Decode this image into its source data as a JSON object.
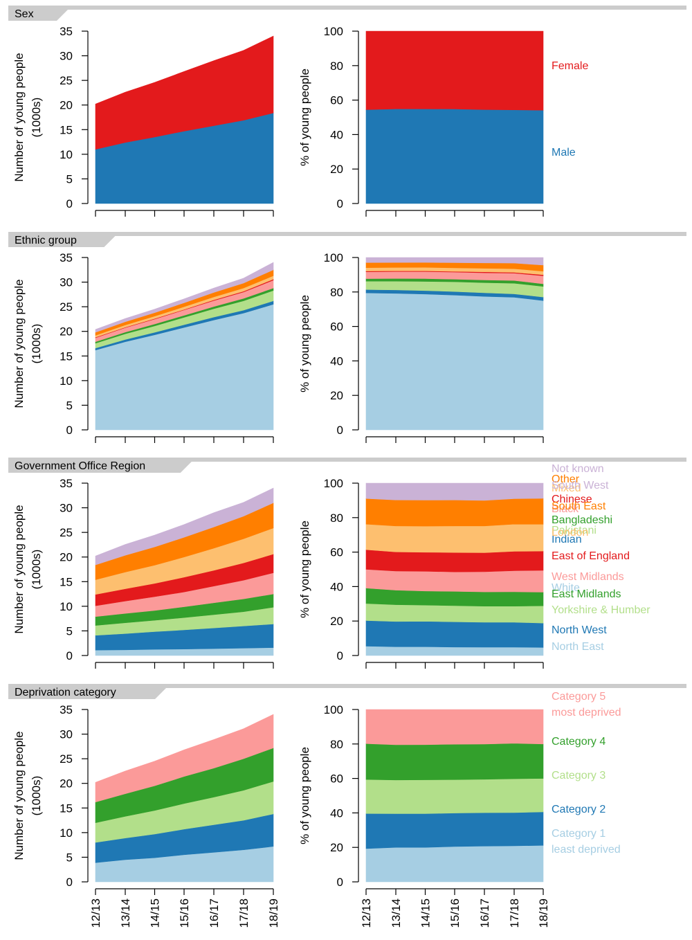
{
  "years": [
    "12/13",
    "13/14",
    "14/15",
    "15/16",
    "16/17",
    "17/18",
    "18/19"
  ],
  "axes": {
    "count_ylabel_line1": "Number of young people",
    "count_ylabel_line2": "(1000s)",
    "percent_ylabel": "% of young people",
    "count_ticks": [
      "0",
      "5",
      "10",
      "15",
      "20",
      "25",
      "30",
      "35"
    ],
    "percent_ticks": [
      "0",
      "20",
      "40",
      "60",
      "80",
      "100"
    ]
  },
  "chart_data": [
    {
      "title": "Sex",
      "type": "area",
      "stacked": true,
      "x": [
        "12/13",
        "13/14",
        "14/15",
        "15/16",
        "16/17",
        "17/18",
        "18/19"
      ],
      "count_ylim": [
        0,
        35
      ],
      "percent_ylim": [
        0,
        100
      ],
      "series": [
        {
          "name": "Male",
          "color": "#1f78b4",
          "values": [
            11.0,
            12.4,
            13.5,
            14.7,
            15.8,
            16.9,
            18.4
          ]
        },
        {
          "name": "Female",
          "color": "#e31a1c",
          "values": [
            9.2,
            10.2,
            11.1,
            12.1,
            13.2,
            14.2,
            15.6
          ]
        }
      ]
    },
    {
      "title": "Ethnic group",
      "type": "area",
      "stacked": true,
      "x": [
        "12/13",
        "13/14",
        "14/15",
        "15/16",
        "16/17",
        "17/18",
        "18/19"
      ],
      "count_ylim": [
        0,
        35
      ],
      "percent_ylim": [
        0,
        100
      ],
      "series": [
        {
          "name": "White",
          "color": "#a6cee3",
          "values": [
            16.2,
            17.9,
            19.3,
            20.8,
            22.3,
            23.7,
            25.5
          ]
        },
        {
          "name": "Indian",
          "color": "#1f78b4",
          "values": [
            0.4,
            0.45,
            0.5,
            0.55,
            0.6,
            0.6,
            0.7
          ]
        },
        {
          "name": "Pakistani",
          "color": "#b2df8a",
          "values": [
            1.0,
            1.15,
            1.3,
            1.5,
            1.7,
            1.9,
            2.1
          ]
        },
        {
          "name": "Bangladeshi",
          "color": "#33a02c",
          "values": [
            0.3,
            0.35,
            0.4,
            0.4,
            0.45,
            0.5,
            0.5
          ]
        },
        {
          "name": "Black",
          "color": "#fb9a99",
          "values": [
            0.8,
            0.9,
            1.0,
            1.1,
            1.2,
            1.3,
            1.6
          ]
        },
        {
          "name": "Chinese",
          "color": "#e31a1c",
          "values": [
            0.1,
            0.1,
            0.1,
            0.1,
            0.15,
            0.15,
            0.2
          ]
        },
        {
          "name": "Mixed",
          "color": "#fdbf6f",
          "values": [
            0.4,
            0.45,
            0.5,
            0.55,
            0.6,
            0.65,
            0.7
          ]
        },
        {
          "name": "Other",
          "color": "#ff7f00",
          "values": [
            0.6,
            0.65,
            0.7,
            0.8,
            0.9,
            1.0,
            1.2
          ]
        },
        {
          "name": "Not known",
          "color": "#cab2d6",
          "values": [
            0.6,
            0.65,
            0.7,
            0.8,
            0.9,
            1.0,
            1.5
          ]
        }
      ]
    },
    {
      "title": "Government Office Region",
      "type": "area",
      "stacked": true,
      "x": [
        "12/13",
        "13/14",
        "14/15",
        "15/16",
        "16/17",
        "17/18",
        "18/19"
      ],
      "count_ylim": [
        0,
        35
      ],
      "percent_ylim": [
        0,
        100
      ],
      "series": [
        {
          "name": "North East",
          "color": "#a6cee3",
          "values": [
            1.1,
            1.15,
            1.25,
            1.3,
            1.4,
            1.5,
            1.6
          ]
        },
        {
          "name": "North West",
          "color": "#1f78b4",
          "values": [
            3.0,
            3.3,
            3.6,
            3.9,
            4.2,
            4.5,
            4.8
          ]
        },
        {
          "name": "Yorkshire & Humber",
          "color": "#b2df8a",
          "values": [
            2.0,
            2.2,
            2.3,
            2.5,
            2.7,
            2.9,
            3.4
          ]
        },
        {
          "name": "East Midlands",
          "color": "#33a02c",
          "values": [
            1.8,
            1.9,
            2.0,
            2.2,
            2.4,
            2.6,
            2.7
          ]
        },
        {
          "name": "West Midlands",
          "color": "#fb9a99",
          "values": [
            2.2,
            2.5,
            2.8,
            3.0,
            3.4,
            3.8,
            4.3
          ]
        },
        {
          "name": "East of England",
          "color": "#e31a1c",
          "values": [
            2.3,
            2.5,
            2.7,
            3.0,
            3.2,
            3.5,
            3.8
          ]
        },
        {
          "name": "London",
          "color": "#fdbf6f",
          "values": [
            3.0,
            3.4,
            3.7,
            4.1,
            4.5,
            4.9,
            5.3
          ]
        },
        {
          "name": "South East",
          "color": "#ff7f00",
          "values": [
            3.0,
            3.4,
            3.7,
            4.0,
            4.3,
            4.6,
            5.1
          ]
        },
        {
          "name": "South West",
          "color": "#cab2d6",
          "values": [
            1.8,
            2.2,
            2.4,
            2.6,
            2.9,
            2.8,
            3.0
          ]
        }
      ]
    },
    {
      "title": "Deprivation category",
      "type": "area",
      "stacked": true,
      "x": [
        "12/13",
        "13/14",
        "14/15",
        "15/16",
        "16/17",
        "17/18",
        "18/19"
      ],
      "count_ylim": [
        0,
        35
      ],
      "percent_ylim": [
        0,
        100
      ],
      "series": [
        {
          "name": "Category 1\nleast deprived",
          "color": "#a6cee3",
          "values": [
            3.9,
            4.5,
            4.9,
            5.5,
            6.0,
            6.5,
            7.2
          ]
        },
        {
          "name": "Category 2",
          "color": "#1f78b4",
          "values": [
            4.1,
            4.4,
            4.8,
            5.2,
            5.6,
            6.0,
            6.6
          ]
        },
        {
          "name": "Category 3",
          "color": "#b2df8a",
          "values": [
            4.0,
            4.4,
            4.8,
            5.2,
            5.6,
            6.1,
            6.6
          ]
        },
        {
          "name": "Category 4",
          "color": "#33a02c",
          "values": [
            4.2,
            4.6,
            5.0,
            5.5,
            5.9,
            6.4,
            6.8
          ]
        },
        {
          "name": "Category 5\nmost deprived",
          "color": "#fb9a99",
          "values": [
            4.0,
            4.6,
            5.0,
            5.4,
            5.8,
            6.1,
            6.8
          ]
        }
      ]
    }
  ]
}
